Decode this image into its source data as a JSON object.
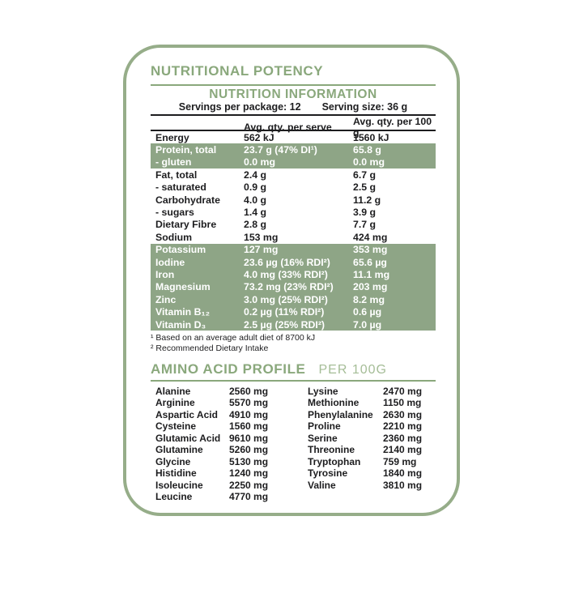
{
  "colors": {
    "accent_green": "#8aa87c",
    "highlight_green": "#8ea586",
    "border_green": "#96ad89",
    "text_dark": "#1d1d1f",
    "subtitle_green": "#a5bd97"
  },
  "panel": {
    "title": "NUTRITIONAL POTENCY"
  },
  "nutrition_table": {
    "title": "NUTRITION INFORMATION",
    "servings_per_package": "Servings per package: 12",
    "serving_size": "Serving size: 36 g",
    "col_serve": "Avg. qty. per serve",
    "col_100g": "Avg. qty. per 100 g",
    "rows": [
      {
        "label": "Energy",
        "serve": "562 kJ",
        "per100": "1560 kJ",
        "highlight": false
      },
      {
        "label": "Protein, total",
        "serve": "23.7 g (47% DI¹)",
        "per100": "65.8 g",
        "highlight": true
      },
      {
        "label": "- gluten",
        "serve": "0.0 mg",
        "per100": "0.0 mg",
        "highlight": true
      },
      {
        "label": "Fat, total",
        "serve": "2.4 g",
        "per100": "6.7 g",
        "highlight": false
      },
      {
        "label": "- saturated",
        "serve": "0.9 g",
        "per100": "2.5 g",
        "highlight": false
      },
      {
        "label": "Carbohydrate",
        "serve": "4.0 g",
        "per100": "11.2 g",
        "highlight": false
      },
      {
        "label": "- sugars",
        "serve": "1.4 g",
        "per100": "3.9 g",
        "highlight": false
      },
      {
        "label": "Dietary Fibre",
        "serve": "2.8 g",
        "per100": "7.7 g",
        "highlight": false
      },
      {
        "label": "Sodium",
        "serve": "153 mg",
        "per100": "424 mg",
        "highlight": false
      },
      {
        "label": "Potassium",
        "serve": "127 mg",
        "per100": "353 mg",
        "highlight": true
      },
      {
        "label": "Iodine",
        "serve": "23.6 µg (16% RDI²)",
        "per100": "65.6 µg",
        "highlight": true
      },
      {
        "label": "Iron",
        "serve": "4.0 mg (33% RDI²)",
        "per100": "11.1 mg",
        "highlight": true
      },
      {
        "label": "Magnesium",
        "serve": "73.2 mg (23% RDI²)",
        "per100": "203 mg",
        "highlight": true
      },
      {
        "label": "Zinc",
        "serve": "3.0 mg (25% RDI²)",
        "per100": "8.2 mg",
        "highlight": true
      },
      {
        "label": "Vitamin B₁₂",
        "serve": "0.2 µg (11% RDI²)",
        "per100": "0.6 µg",
        "highlight": true
      },
      {
        "label": "Vitamin D₃",
        "serve": "2.5 µg (25% RDI²)",
        "per100": "7.0 µg",
        "highlight": true
      }
    ],
    "footnotes": [
      "¹ Based on an average adult diet of 8700 kJ",
      "² Recommended Dietary Intake"
    ]
  },
  "amino_profile": {
    "title": "AMINO ACID PROFILE",
    "subtitle": "PER 100G",
    "left": [
      {
        "name": "Alanine",
        "value": "2560 mg"
      },
      {
        "name": "Arginine",
        "value": "5570 mg"
      },
      {
        "name": "Aspartic Acid",
        "value": "4910 mg"
      },
      {
        "name": "Cysteine",
        "value": "1560 mg"
      },
      {
        "name": "Glutamic Acid",
        "value": "9610 mg"
      },
      {
        "name": "Glutamine",
        "value": "5260 mg"
      },
      {
        "name": "Glycine",
        "value": "5130 mg"
      },
      {
        "name": "Histidine",
        "value": "1240 mg"
      },
      {
        "name": "Isoleucine",
        "value": "2250 mg"
      },
      {
        "name": "Leucine",
        "value": "4770 mg"
      }
    ],
    "right": [
      {
        "name": "Lysine",
        "value": "2470 mg"
      },
      {
        "name": "Methionine",
        "value": "1150 mg"
      },
      {
        "name": "Phenylalanine",
        "value": "2630 mg"
      },
      {
        "name": "Proline",
        "value": "2210 mg"
      },
      {
        "name": "Serine",
        "value": "2360 mg"
      },
      {
        "name": "Threonine",
        "value": "2140 mg"
      },
      {
        "name": "Tryptophan",
        "value": "759 mg"
      },
      {
        "name": "Tyrosine",
        "value": "1840 mg"
      },
      {
        "name": "Valine",
        "value": "3810 mg"
      }
    ]
  }
}
